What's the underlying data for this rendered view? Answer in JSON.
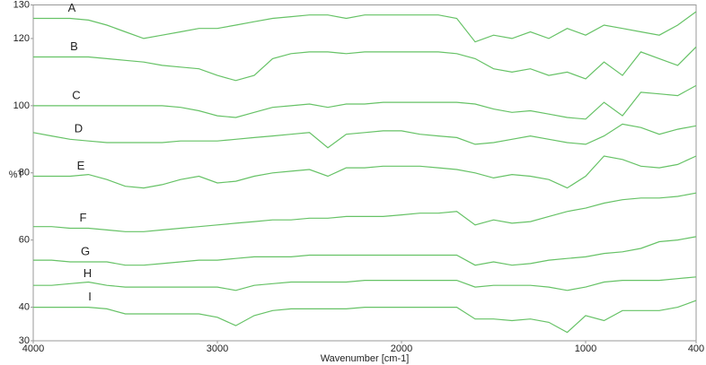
{
  "chart_data": {
    "type": "line",
    "x_label": "Wavenumber [cm-1]",
    "y_label": "%T",
    "xlim": [
      4000,
      400
    ],
    "ylim": [
      30,
      130
    ],
    "xticks": [
      4000,
      3000,
      2000,
      1000,
      400
    ],
    "yticks": [
      30,
      40,
      60,
      80,
      100,
      120,
      130
    ],
    "x": [
      4000,
      3900,
      3800,
      3700,
      3600,
      3500,
      3400,
      3300,
      3200,
      3100,
      3000,
      2900,
      2800,
      2700,
      2600,
      2500,
      2400,
      2300,
      2200,
      2100,
      2000,
      1900,
      1800,
      1700,
      1600,
      1500,
      1400,
      1300,
      1200,
      1100,
      1000,
      900,
      800,
      700,
      600,
      500,
      400
    ],
    "series": [
      {
        "name": "A",
        "color": "#66c266",
        "values": [
          126,
          126,
          126,
          125.5,
          124,
          122,
          120,
          121,
          122,
          123,
          123,
          124,
          125,
          126,
          126.5,
          127,
          127,
          126,
          127,
          127,
          127,
          127,
          127,
          126,
          119,
          121,
          120,
          122,
          120,
          123,
          121,
          124,
          123,
          122,
          121,
          124,
          128
        ]
      },
      {
        "name": "B",
        "color": "#66c266",
        "values": [
          114.5,
          114.5,
          114.5,
          114.5,
          114,
          113.5,
          113,
          112,
          111.5,
          111,
          109,
          107.5,
          109,
          114,
          115.5,
          116,
          116,
          115.5,
          116,
          116,
          116,
          116,
          116,
          115.5,
          114,
          111,
          110,
          111,
          109,
          110,
          108,
          113,
          109,
          116,
          114,
          112,
          117.5
        ]
      },
      {
        "name": "C",
        "color": "#66c266",
        "values": [
          100,
          100,
          100,
          100,
          100,
          100,
          100,
          100,
          99.5,
          98.5,
          97,
          96.5,
          98,
          99.5,
          100,
          100.5,
          99.5,
          100.5,
          100.5,
          101,
          101,
          101,
          101,
          101,
          100.5,
          99,
          98,
          98.5,
          97.5,
          96.5,
          96,
          101,
          97,
          104,
          103.5,
          103,
          106
        ]
      },
      {
        "name": "D",
        "color": "#66c266",
        "values": [
          92,
          91,
          90,
          89.5,
          89,
          89,
          89,
          89,
          89.5,
          89.5,
          89.5,
          90,
          90.5,
          91,
          91.5,
          92,
          87.5,
          91.5,
          92,
          92.5,
          92.5,
          91.5,
          91,
          90.5,
          88.5,
          89,
          90,
          91,
          90,
          89,
          88.5,
          91,
          94.5,
          93.5,
          91.5,
          93,
          94
        ]
      },
      {
        "name": "E",
        "color": "#66c266",
        "values": [
          79,
          79,
          79,
          79.5,
          78,
          76,
          75.5,
          76.5,
          78,
          79,
          77,
          77.5,
          79,
          80,
          80.5,
          81,
          79,
          81.5,
          81.5,
          82,
          82,
          82,
          81.5,
          81,
          80,
          78.5,
          79.5,
          79,
          78,
          75.5,
          79,
          85,
          84,
          82,
          81.5,
          82.5,
          85
        ]
      },
      {
        "name": "F",
        "color": "#66c266",
        "values": [
          64,
          64,
          63.5,
          63.5,
          63,
          62.5,
          62.5,
          63,
          63.5,
          64,
          64.5,
          65,
          65.5,
          66,
          66,
          66.5,
          66.5,
          67,
          67,
          67,
          67.5,
          68,
          68,
          68.5,
          64.5,
          66,
          65,
          65.5,
          67,
          68.5,
          69.5,
          71,
          72,
          72.5,
          72.5,
          73,
          74
        ]
      },
      {
        "name": "G",
        "color": "#66c266",
        "values": [
          54,
          54,
          53.5,
          53.5,
          53.5,
          52.5,
          52.5,
          53,
          53.5,
          54,
          54,
          54.5,
          55,
          55,
          55,
          55.5,
          55.5,
          55.5,
          55.5,
          55.5,
          55.5,
          55.5,
          55.5,
          55.5,
          52.5,
          53.5,
          52.5,
          53,
          54,
          54.5,
          55,
          56,
          56.5,
          57.5,
          59.5,
          60,
          61
        ]
      },
      {
        "name": "H",
        "color": "#66c266",
        "values": [
          46.5,
          46.5,
          47,
          47.5,
          46.5,
          46,
          46,
          46,
          46,
          46,
          46,
          45,
          46.5,
          47,
          47.5,
          47.5,
          47.5,
          47.5,
          48,
          48,
          48,
          48,
          48,
          48,
          46,
          46.5,
          46.5,
          46.5,
          46,
          45,
          46,
          47.5,
          48,
          48,
          48,
          48.5,
          49
        ]
      },
      {
        "name": "I",
        "color": "#66c266",
        "values": [
          40,
          40,
          40,
          40,
          39.5,
          38,
          38,
          38,
          38,
          38,
          37,
          34.5,
          37.5,
          39,
          39.5,
          39.5,
          39.5,
          39.5,
          40,
          40,
          40,
          40,
          40,
          40,
          36.5,
          36.5,
          36,
          36.5,
          35.5,
          32.5,
          37.5,
          36,
          39,
          39,
          39,
          40,
          42
        ]
      }
    ]
  }
}
